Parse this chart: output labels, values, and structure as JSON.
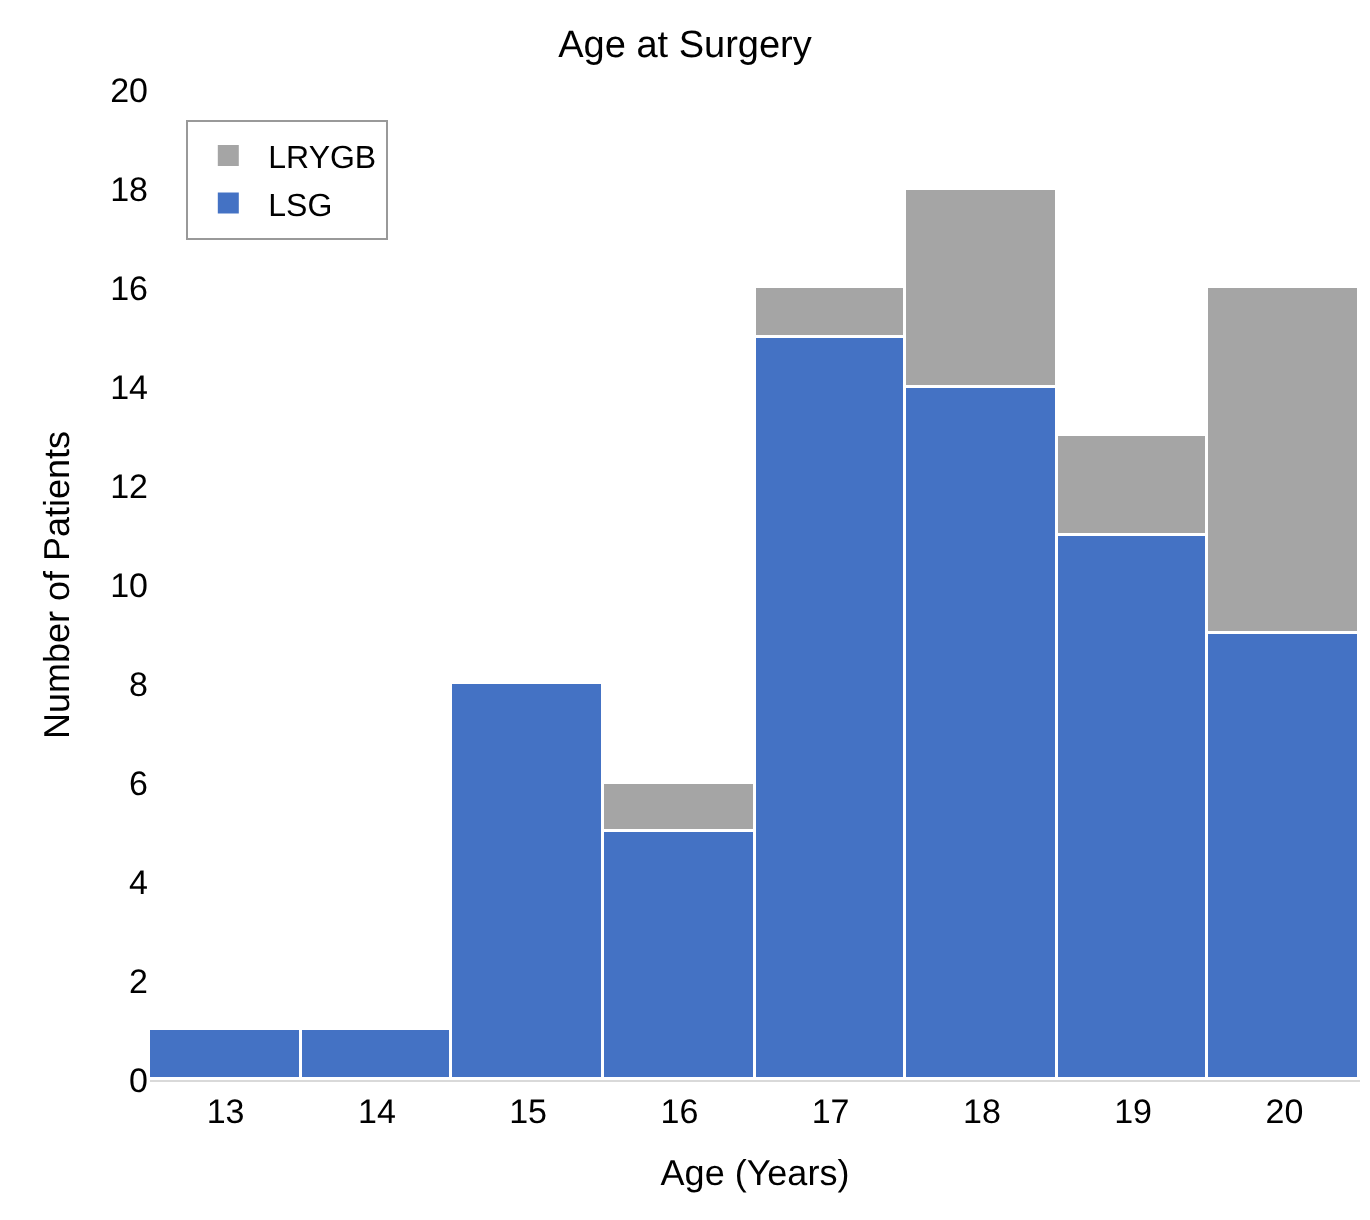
{
  "chart_data": {
    "type": "bar",
    "title": "Age at Surgery",
    "xlabel": "Age (Years)",
    "ylabel": "Number of Patients",
    "categories": [
      "13",
      "14",
      "15",
      "16",
      "17",
      "18",
      "19",
      "20"
    ],
    "series": [
      {
        "name": "LSG",
        "color": "#4472c4",
        "values": [
          1,
          1,
          8,
          5,
          15,
          14,
          11,
          9
        ]
      },
      {
        "name": "LRYGB",
        "color": "#a5a5a5",
        "values": [
          null,
          null,
          null,
          1,
          1,
          4,
          2,
          7
        ]
      }
    ],
    "stacked": true,
    "ylim": [
      0,
      20
    ],
    "yticks": [
      0,
      2,
      4,
      6,
      8,
      10,
      12,
      14,
      16,
      18,
      20
    ],
    "legend": "top left"
  }
}
